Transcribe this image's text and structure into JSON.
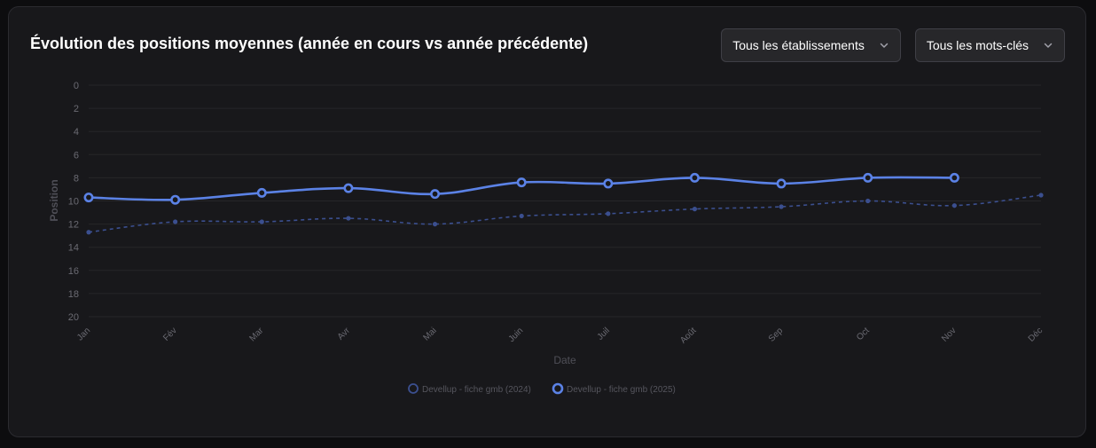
{
  "header": {
    "title": "Évolution des positions moyennes (année en cours vs année précédente)"
  },
  "filters": {
    "establishment": "Tous les établissements",
    "keywords": "Tous les mots-clés"
  },
  "colors": {
    "series_2024": "#3b4f8f",
    "series_2025": "#5b82e6",
    "grid": "#262629",
    "tick_text": "#6b6b73",
    "axis_title": "#4f4f57"
  },
  "chart_data": {
    "type": "line",
    "x": [
      "Jan",
      "Fév",
      "Mar",
      "Avr",
      "Mai",
      "Juin",
      "Juil",
      "Août",
      "Sep",
      "Oct",
      "Nov",
      "Déc"
    ],
    "xlabel": "Date",
    "ylabel": "Position",
    "ylim": [
      0,
      20
    ],
    "y_reversed": true,
    "yticks": [
      0,
      2,
      4,
      6,
      8,
      10,
      12,
      14,
      16,
      18,
      20
    ],
    "grid": true,
    "legend_position": "bottom",
    "series": [
      {
        "name": "Devellup - fiche gmb (2024)",
        "style": "dashed",
        "values": [
          12.7,
          11.8,
          11.8,
          11.5,
          12.0,
          11.3,
          11.1,
          10.7,
          10.5,
          10.0,
          10.4,
          9.5
        ]
      },
      {
        "name": "Devellup - fiche gmb (2025)",
        "style": "solid",
        "values": [
          9.7,
          9.9,
          9.3,
          8.9,
          9.4,
          8.4,
          8.5,
          8.0,
          8.5,
          8.0,
          8.0,
          null
        ]
      }
    ]
  }
}
